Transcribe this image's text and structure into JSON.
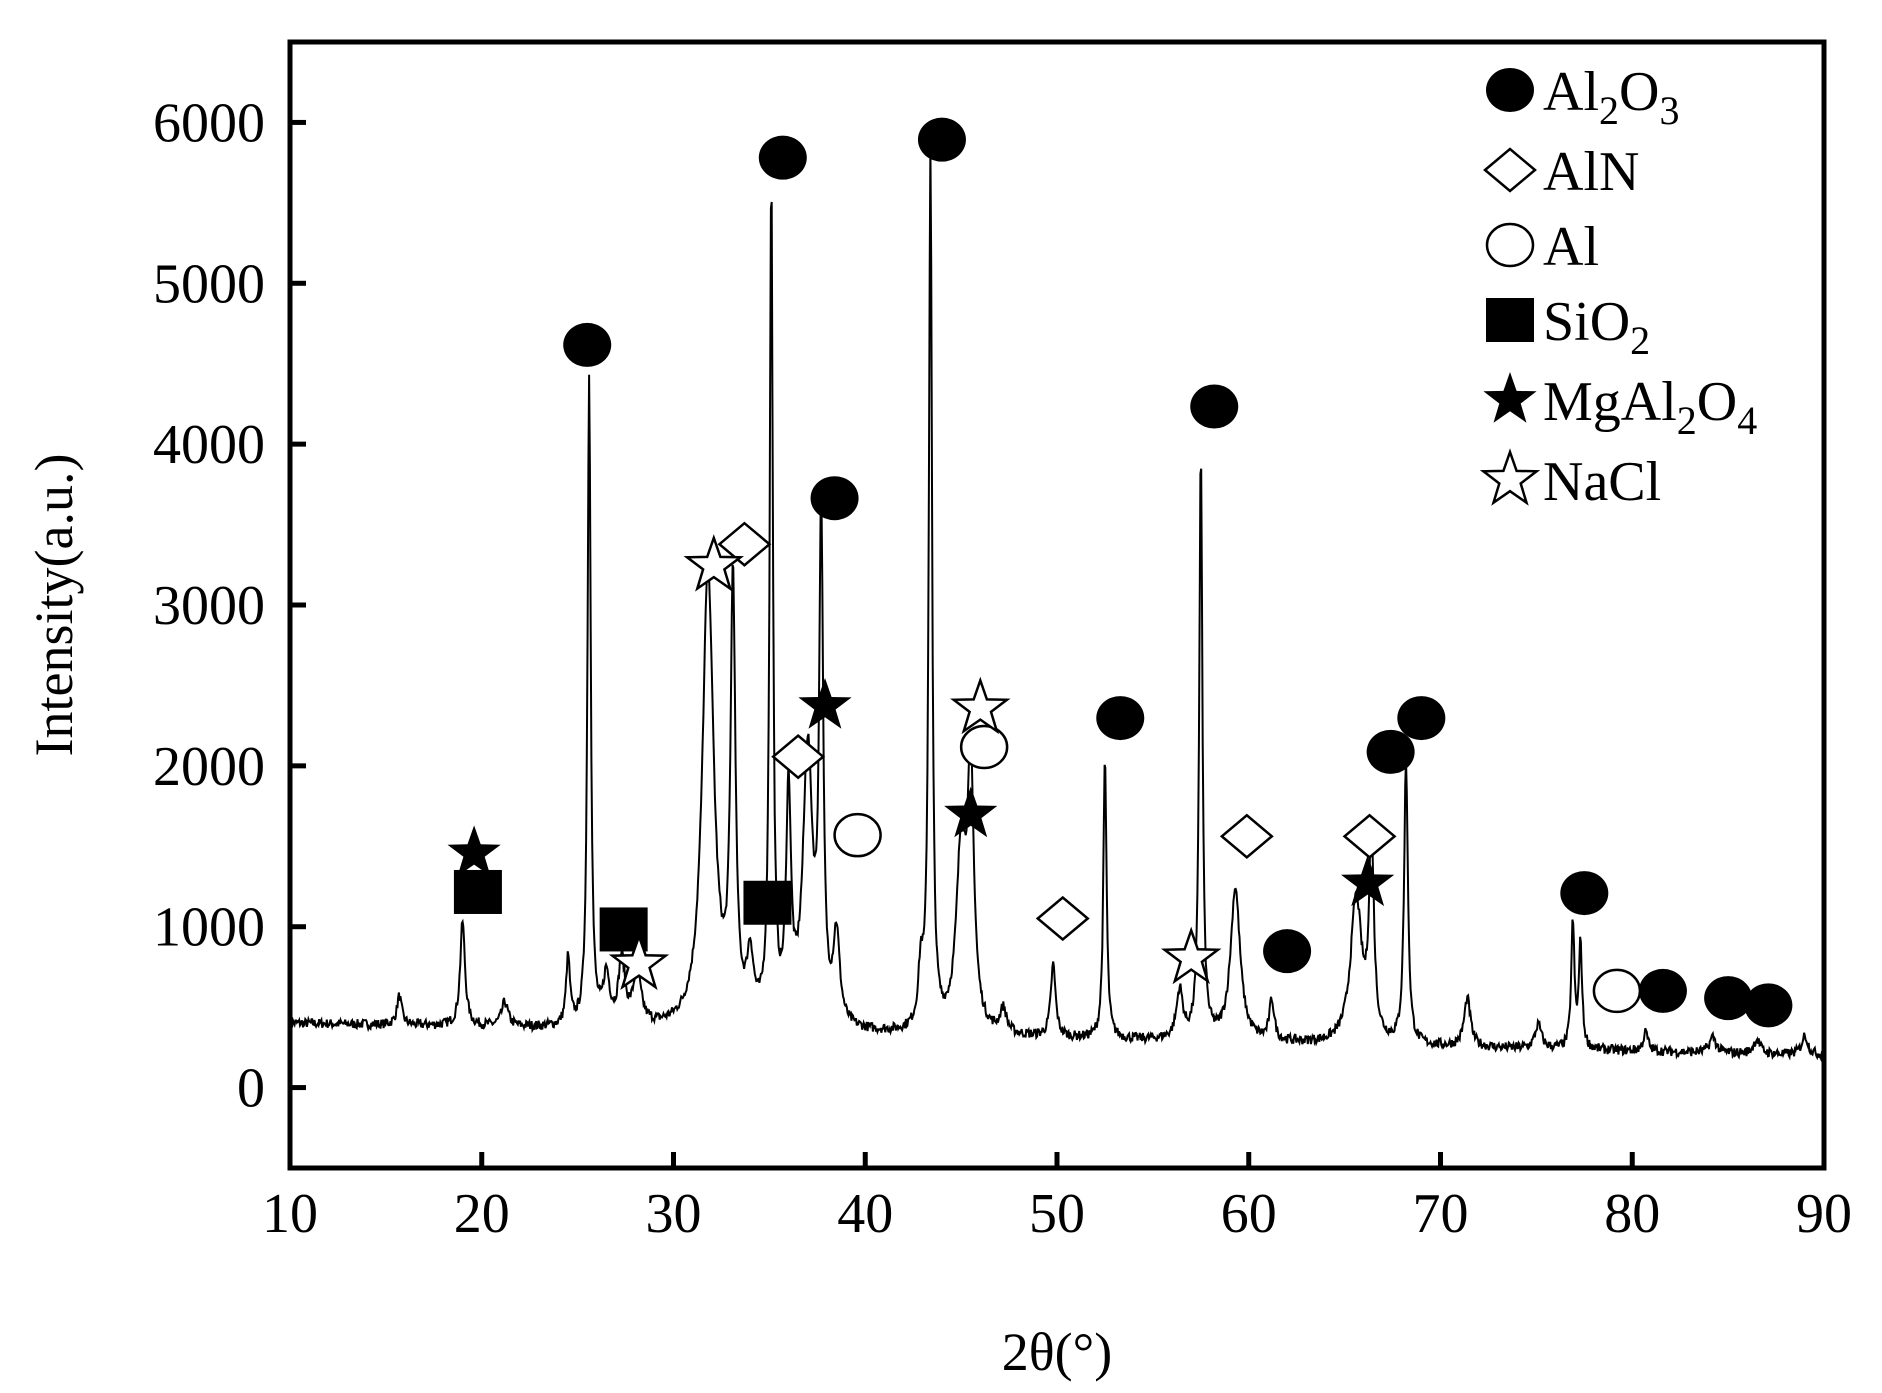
{
  "chart_data": {
    "type": "line",
    "xlabel": "2θ(°)",
    "ylabel": "Intensity(a.u.)",
    "xlim": [
      10,
      90
    ],
    "ylim": [
      -500,
      6500
    ],
    "xticks": [
      10,
      20,
      30,
      40,
      50,
      60,
      70,
      80,
      90
    ],
    "yticks": [
      0,
      1000,
      2000,
      3000,
      4000,
      5000,
      6000
    ],
    "grid": false,
    "legend_position": "top-right",
    "pattern": {
      "baseline_start": 400,
      "baseline_end": 200,
      "peaks": [
        [
          15.7,
          180,
          0.15
        ],
        [
          19.0,
          650,
          0.15
        ],
        [
          21.2,
          150,
          0.2
        ],
        [
          24.5,
          420,
          0.12
        ],
        [
          25.6,
          4030,
          0.1
        ],
        [
          26.5,
          300,
          0.2
        ],
        [
          27.3,
          400,
          0.2
        ],
        [
          28.1,
          320,
          0.25
        ],
        [
          31.8,
          2850,
          0.35
        ],
        [
          33.1,
          2700,
          0.15
        ],
        [
          34.0,
          380,
          0.2
        ],
        [
          35.1,
          5200,
          0.1
        ],
        [
          36.0,
          1400,
          0.15
        ],
        [
          37.0,
          1700,
          0.3
        ],
        [
          37.7,
          3100,
          0.12
        ],
        [
          38.5,
          550,
          0.2
        ],
        [
          42.9,
          350,
          0.15
        ],
        [
          43.4,
          5450,
          0.1
        ],
        [
          45.0,
          1100,
          0.3
        ],
        [
          45.5,
          1550,
          0.2
        ],
        [
          47.2,
          150,
          0.2
        ],
        [
          49.8,
          450,
          0.15
        ],
        [
          52.5,
          1750,
          0.1
        ],
        [
          56.4,
          300,
          0.2
        ],
        [
          57.5,
          3650,
          0.1
        ],
        [
          59.3,
          950,
          0.3
        ],
        [
          61.2,
          250,
          0.15
        ],
        [
          65.6,
          900,
          0.35
        ],
        [
          66.4,
          1250,
          0.15
        ],
        [
          68.2,
          1750,
          0.12
        ],
        [
          71.4,
          300,
          0.2
        ],
        [
          75.1,
          150,
          0.2
        ],
        [
          76.9,
          780,
          0.1
        ],
        [
          77.3,
          650,
          0.1
        ],
        [
          80.7,
          120,
          0.15
        ],
        [
          84.2,
          100,
          0.2
        ],
        [
          86.5,
          90,
          0.2
        ],
        [
          89.0,
          120,
          0.2
        ]
      ]
    },
    "series": [
      {
        "name": "Al2O3",
        "marker": "filled-circle",
        "x": [
          25.5,
          35.7,
          44.0,
          38.4,
          58.2,
          53.3,
          67.4,
          69.0,
          62.0,
          77.5,
          81.6,
          85.0,
          87.1
        ],
        "y": [
          4617,
          5781,
          5893,
          3664,
          4234,
          2297,
          2087,
          2297,
          848,
          1209,
          601,
          556,
          511
        ]
      },
      {
        "name": "AlN",
        "marker": "open-diamond",
        "x": [
          33.7,
          36.5,
          59.9,
          50.3,
          66.3
        ],
        "y": [
          3378,
          2057,
          1562,
          1051,
          1562
        ]
      },
      {
        "name": "Al",
        "marker": "open-circle",
        "x": [
          39.6,
          46.2,
          79.2
        ],
        "y": [
          1569,
          2117,
          601
        ]
      },
      {
        "name": "SiO2",
        "marker": "filled-square",
        "x": [
          19.8,
          27.4,
          34.9
        ],
        "y": [
          1216,
          983,
          1149
        ]
      },
      {
        "name": "MgAl2O4",
        "marker": "filled-star",
        "x": [
          19.6,
          37.9,
          45.5,
          66.2
        ],
        "y": [
          1456,
          2372,
          1697,
          1269
        ]
      },
      {
        "name": "NaCl",
        "marker": "open-star",
        "x": [
          32.1,
          46.0,
          57.0,
          28.2
        ],
        "y": [
          3243,
          2357,
          803,
          766
        ]
      }
    ],
    "legend": [
      {
        "base": "Al",
        "sub1": "2",
        "mid": "O",
        "sub2": "3"
      },
      {
        "base": "AlN",
        "sub1": "",
        "mid": "",
        "sub2": ""
      },
      {
        "base": "Al",
        "sub1": "",
        "mid": "",
        "sub2": ""
      },
      {
        "base": "SiO",
        "sub1": "2",
        "mid": "",
        "sub2": ""
      },
      {
        "base": "MgAl",
        "sub1": "2",
        "mid": "O",
        "sub2": "4"
      },
      {
        "base": "NaCl",
        "sub1": "",
        "mid": "",
        "sub2": ""
      }
    ],
    "color": "#000000"
  }
}
